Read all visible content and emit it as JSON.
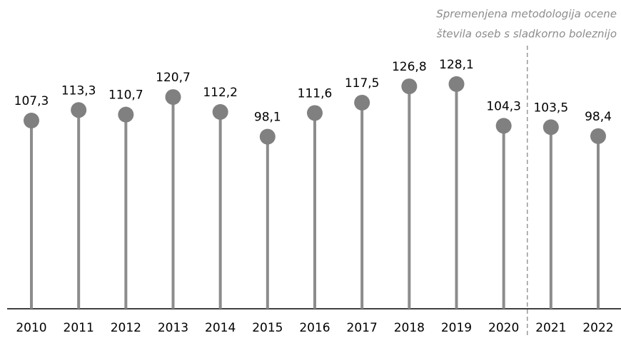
{
  "chart_data": {
    "type": "lollipop",
    "annotation": [
      "Spremenjena metodologija ocene",
      "števila oseb s sladkorno boleznijo"
    ],
    "categories": [
      "2010",
      "2011",
      "2012",
      "2013",
      "2014",
      "2015",
      "2016",
      "2017",
      "2018",
      "2019",
      "2020",
      "2021",
      "2022"
    ],
    "values": [
      107.3,
      113.3,
      110.7,
      120.7,
      112.2,
      98.1,
      111.6,
      117.5,
      126.8,
      128.1,
      104.3,
      103.5,
      98.4
    ],
    "value_labels": [
      "107,3",
      "113,3",
      "110,7",
      "120,7",
      "112,2",
      "98,1",
      "111,6",
      "117,5",
      "126,8",
      "128,1",
      "104,3",
      "103,5",
      "98,4"
    ],
    "color": "#8c8c8c",
    "ylim": [
      0,
      150
    ]
  }
}
